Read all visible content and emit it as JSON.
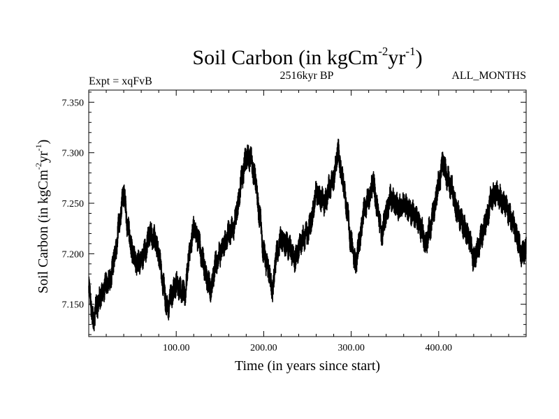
{
  "chart_data": {
    "type": "line",
    "title": {
      "base": "Soil Carbon (in kgCm",
      "exp1": "-2",
      "mid": "yr",
      "exp2": "-1",
      "end": ")"
    },
    "subtitle_left": "Expt = xqFvB",
    "subtitle_center": "2516kyr BP",
    "subtitle_right": "ALL_MONTHS",
    "xlabel": "Time (in years since start)",
    "ylabel": {
      "base": "Soil Carbon (in kgCm",
      "exp1": "-2",
      "mid": "yr",
      "exp2": "-1",
      "end": ")"
    },
    "xlim": [
      0,
      500
    ],
    "ylim": [
      7.118,
      7.362
    ],
    "x_ticks": [
      100,
      200,
      300,
      400
    ],
    "x_tick_labels": [
      "100.00",
      "200.00",
      "300.00",
      "400.00"
    ],
    "y_ticks": [
      7.15,
      7.2,
      7.25,
      7.3,
      7.35
    ],
    "y_tick_labels": [
      "7.150",
      "7.200",
      "7.250",
      "7.300",
      "7.350"
    ],
    "grid": false,
    "line_color": "#000000",
    "series": [
      {
        "x": [
          0,
          5,
          10,
          15,
          20,
          25,
          30,
          35,
          40,
          45,
          50,
          55,
          60,
          65,
          70,
          75,
          80,
          85,
          90,
          95,
          100,
          105,
          110,
          115,
          120,
          125,
          130,
          135,
          140,
          145,
          150,
          155,
          160,
          165,
          170,
          175,
          180,
          185,
          190,
          195,
          200,
          205,
          210,
          215,
          220,
          225,
          230,
          235,
          240,
          245,
          250,
          255,
          260,
          265,
          270,
          275,
          280,
          285,
          290,
          295,
          300,
          305,
          310,
          315,
          320,
          325,
          330,
          335,
          340,
          345,
          350,
          355,
          360,
          365,
          370,
          375,
          380,
          385,
          390,
          395,
          400,
          405,
          410,
          415,
          420,
          425,
          430,
          435,
          440,
          445,
          450,
          455,
          460,
          465,
          470,
          475,
          480,
          485,
          490,
          495,
          500
        ],
        "values": [
          7.165,
          7.135,
          7.15,
          7.16,
          7.17,
          7.175,
          7.2,
          7.23,
          7.26,
          7.225,
          7.2,
          7.19,
          7.195,
          7.205,
          7.22,
          7.215,
          7.2,
          7.17,
          7.145,
          7.16,
          7.17,
          7.165,
          7.16,
          7.2,
          7.225,
          7.215,
          7.195,
          7.175,
          7.165,
          7.19,
          7.2,
          7.21,
          7.22,
          7.225,
          7.245,
          7.275,
          7.295,
          7.295,
          7.275,
          7.24,
          7.2,
          7.185,
          7.165,
          7.2,
          7.215,
          7.21,
          7.205,
          7.195,
          7.205,
          7.215,
          7.22,
          7.235,
          7.26,
          7.255,
          7.25,
          7.265,
          7.275,
          7.3,
          7.275,
          7.245,
          7.21,
          7.19,
          7.215,
          7.245,
          7.255,
          7.27,
          7.245,
          7.22,
          7.24,
          7.255,
          7.25,
          7.245,
          7.25,
          7.245,
          7.24,
          7.235,
          7.225,
          7.21,
          7.225,
          7.245,
          7.27,
          7.29,
          7.275,
          7.265,
          7.245,
          7.235,
          7.225,
          7.215,
          7.195,
          7.205,
          7.22,
          7.235,
          7.255,
          7.26,
          7.255,
          7.25,
          7.24,
          7.23,
          7.215,
          7.2,
          7.205
        ]
      }
    ]
  }
}
